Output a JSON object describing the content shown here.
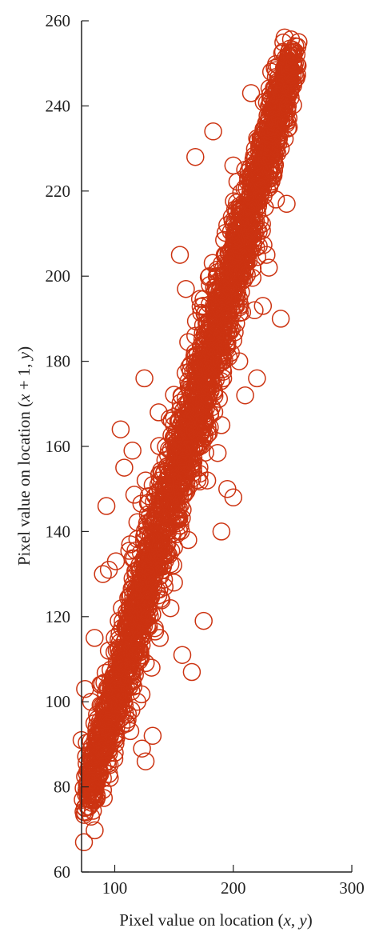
{
  "chart_data": {
    "type": "scatter",
    "marker": "open-circle",
    "marker_color": "#cc3311",
    "axis_color": "#222222",
    "grid": false,
    "legend": "none",
    "xlim": [
      72,
      300
    ],
    "ylim": [
      60,
      260
    ],
    "xticks": [
      100,
      200,
      300
    ],
    "yticks": [
      60,
      80,
      100,
      120,
      140,
      160,
      180,
      200,
      220,
      240,
      260
    ],
    "xlabel": {
      "pre": "Pixel value on location (",
      "v1": "x",
      "mid": ", ",
      "v2": "y",
      "post": ")"
    },
    "ylabel": {
      "pre": "Pixel value on location (",
      "v1": "x",
      "mid": " + 1, ",
      "v2": "y",
      "post": ")"
    },
    "series": [
      {
        "values": [
          [
            74,
            67
          ],
          [
            73,
            77
          ],
          [
            75,
            74
          ],
          [
            80,
            73
          ],
          [
            72,
            91
          ],
          [
            75,
            103
          ],
          [
            80,
            100
          ],
          [
            83,
            115
          ],
          [
            90,
            130
          ],
          [
            95,
            131
          ],
          [
            93,
            146
          ],
          [
            101,
            133
          ],
          [
            105,
            164
          ],
          [
            108,
            155
          ],
          [
            115,
            159
          ],
          [
            125,
            176
          ],
          [
            123,
            89
          ],
          [
            126,
            86
          ],
          [
            114,
            98
          ],
          [
            131,
            108
          ],
          [
            142,
            127
          ],
          [
            147,
            122
          ],
          [
            148,
            145
          ],
          [
            155,
            205
          ],
          [
            160,
            197
          ],
          [
            157,
            111
          ],
          [
            165,
            107
          ],
          [
            175,
            119
          ],
          [
            168,
            228
          ],
          [
            183,
            234
          ],
          [
            190,
            140
          ],
          [
            195,
            150
          ],
          [
            200,
            148
          ],
          [
            210,
            172
          ],
          [
            220,
            176
          ],
          [
            225,
            193
          ],
          [
            230,
            202
          ],
          [
            245,
            217
          ],
          [
            255,
            255
          ],
          [
            252,
            250
          ],
          [
            240,
            245
          ],
          [
            240,
            190
          ],
          [
            215,
            243
          ],
          [
            200,
            226
          ],
          [
            180,
            200
          ],
          [
            170,
            180
          ],
          [
            137,
            168
          ],
          [
            126,
            152
          ],
          [
            113,
            137
          ],
          [
            106,
            122
          ],
          [
            95,
            112
          ],
          [
            88,
            104
          ],
          [
            85,
            97
          ],
          [
            90,
            82
          ],
          [
            100,
            88
          ],
          [
            110,
            95
          ],
          [
            119,
            100
          ],
          [
            132,
            92
          ],
          [
            138,
            115
          ],
          [
            150,
            128
          ],
          [
            162,
            138
          ],
          [
            178,
            152
          ],
          [
            190,
            165
          ],
          [
            205,
            180
          ],
          [
            218,
            192
          ],
          [
            228,
            205
          ],
          [
            236,
            218
          ],
          [
            185,
            190
          ],
          [
            172,
            178
          ],
          [
            160,
            170
          ],
          [
            145,
            158
          ],
          [
            133,
            147
          ],
          [
            122,
            135
          ],
          [
            150,
            165
          ],
          [
            168,
            186
          ],
          [
            195,
            212
          ],
          [
            210,
            225
          ],
          [
            230,
            233
          ],
          [
            95,
            95
          ],
          [
            100,
            115
          ],
          [
            112,
            120
          ],
          [
            120,
            128
          ],
          [
            128,
            144
          ],
          [
            138,
            152
          ],
          [
            145,
            140
          ],
          [
            155,
            150
          ],
          [
            162,
            160
          ],
          [
            175,
            170
          ],
          [
            182,
            178
          ],
          [
            195,
            190
          ],
          [
            205,
            200
          ],
          [
            215,
            210
          ],
          [
            222,
            220
          ],
          [
            240,
            230
          ],
          [
            246,
            240
          ],
          [
            232,
            248
          ],
          [
            198,
            206
          ],
          [
            186,
            200
          ]
        ]
      }
    ]
  }
}
